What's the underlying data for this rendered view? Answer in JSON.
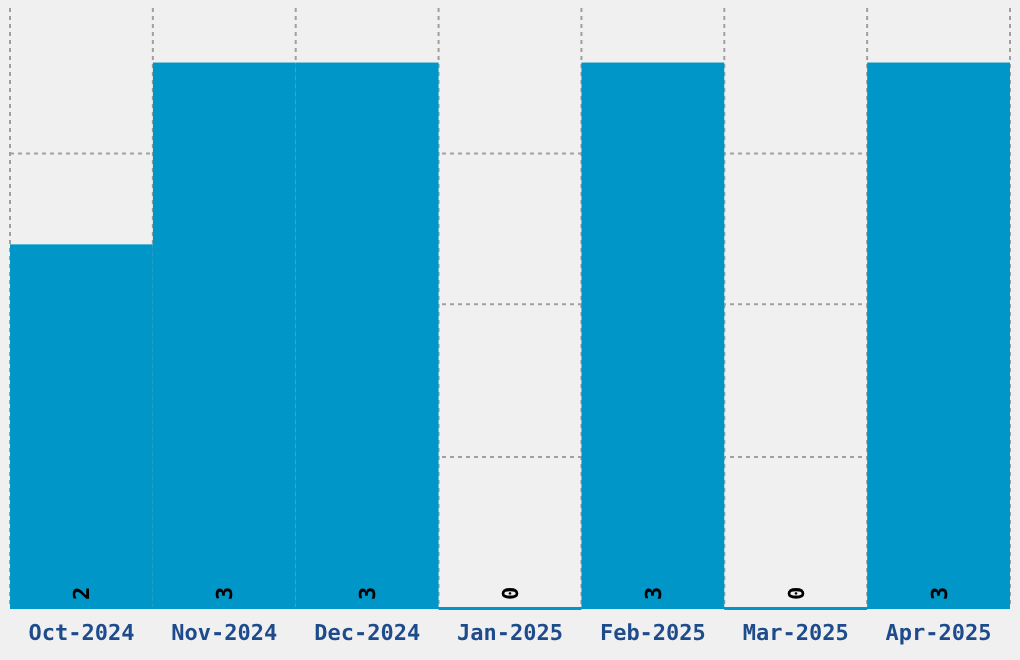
{
  "chart_data": {
    "type": "bar",
    "categories": [
      "Oct-2024",
      "Nov-2024",
      "Dec-2024",
      "Jan-2025",
      "Feb-2025",
      "Mar-2025",
      "Apr-2025"
    ],
    "values": [
      2,
      3,
      3,
      0,
      3,
      0,
      3
    ],
    "color": "#0096c8",
    "data_labels": true,
    "grid": true,
    "tick_labels": "x",
    "ylim": [
      0,
      3.3
    ],
    "yticks": [
      {
        "value": 0.83,
        "label": null
      },
      {
        "value": 1.67,
        "label": null
      },
      {
        "value": 2.5,
        "label": null
      }
    ]
  }
}
